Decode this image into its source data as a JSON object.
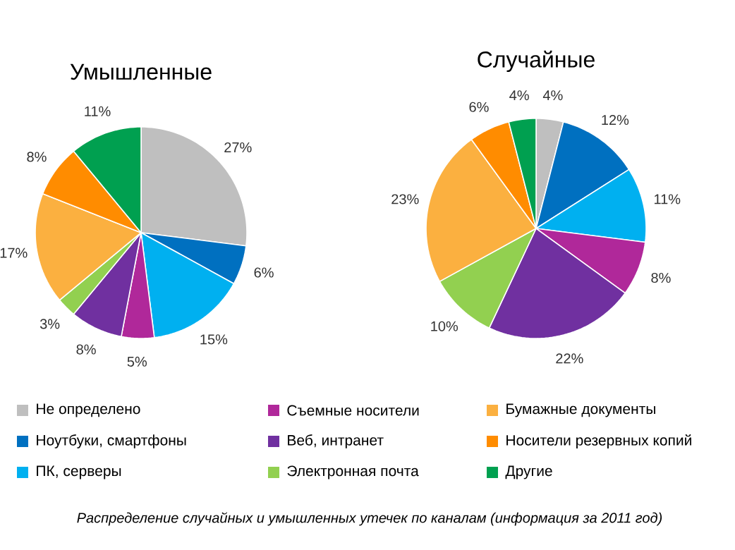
{
  "chart_data": [
    {
      "type": "pie",
      "title": "Умышленные",
      "categories": [
        "Не определено",
        "Ноутбуки, смартфоны",
        "ПК, серверы",
        "Съемные носители",
        "Веб, интранет",
        "Электронная почта",
        "Бумажные документы",
        "Носители резервных копий",
        "Другие"
      ],
      "values": [
        27,
        6,
        15,
        5,
        8,
        3,
        17,
        8,
        11
      ],
      "value_labels": [
        "27%",
        "6%",
        "15%",
        "5%",
        "8%",
        "3%",
        "17%",
        "8%",
        "11%"
      ],
      "colors": [
        "#bfbfbf",
        "#0070c0",
        "#00b0f0",
        "#b0289a",
        "#7030a0",
        "#92d050",
        "#fbb040",
        "#ff8c00",
        "#00a050"
      ],
      "legend": "bottom",
      "annotations": [
        "Распределение случайных и умышленных утечек по каналам (информация за 2011 год)"
      ]
    },
    {
      "type": "pie",
      "title": "Случайные",
      "values": [
        4,
        12,
        11,
        8,
        22,
        10,
        23,
        6,
        4
      ],
      "value_labels": [
        "4%",
        "12%",
        "11%",
        "8%",
        "22%",
        "10%",
        "23%",
        "6%",
        "4%"
      ],
      "colors": [
        "#bfbfbf",
        "#0070c0",
        "#00b0f0",
        "#b0289a",
        "#7030a0",
        "#92d050",
        "#fbb040",
        "#ff8c00",
        "#00a050"
      ]
    }
  ]
}
